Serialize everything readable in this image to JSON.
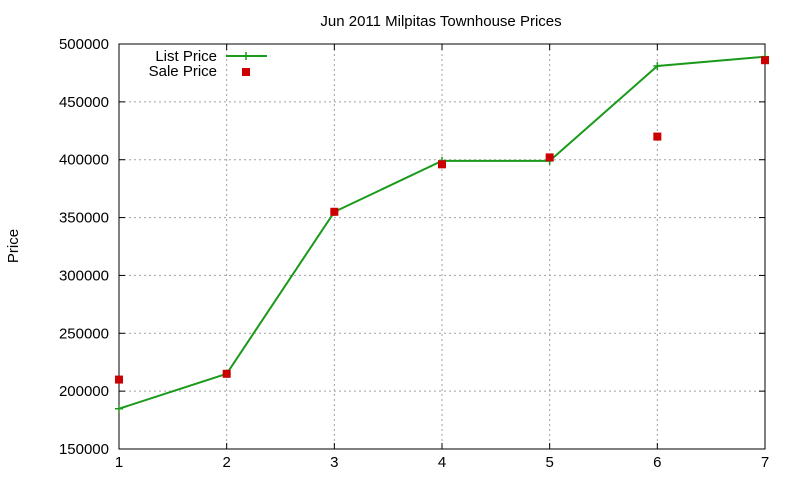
{
  "chart_data": {
    "type": "line",
    "title": "Jun 2011 Milpitas Townhouse Prices",
    "xlabel": "",
    "ylabel": "Price",
    "x": [
      1,
      2,
      3,
      4,
      5,
      6,
      7
    ],
    "xlim": [
      1,
      7
    ],
    "ylim": [
      150000,
      500000
    ],
    "xticks": [
      1,
      2,
      3,
      4,
      5,
      6,
      7
    ],
    "yticks": [
      150000,
      200000,
      250000,
      300000,
      350000,
      400000,
      450000,
      500000
    ],
    "grid": true,
    "legend_position": "top-left",
    "series": [
      {
        "name": "List Price",
        "style": "line-with-plus-markers",
        "color": "#1a9a1a",
        "values": [
          184800,
          215000,
          354900,
          399000,
          399000,
          481000,
          489000
        ]
      },
      {
        "name": "Sale Price",
        "style": "square-points",
        "color": "#cc0000",
        "values": [
          210000,
          215000,
          355000,
          396000,
          402000,
          420000,
          486000
        ]
      }
    ]
  }
}
